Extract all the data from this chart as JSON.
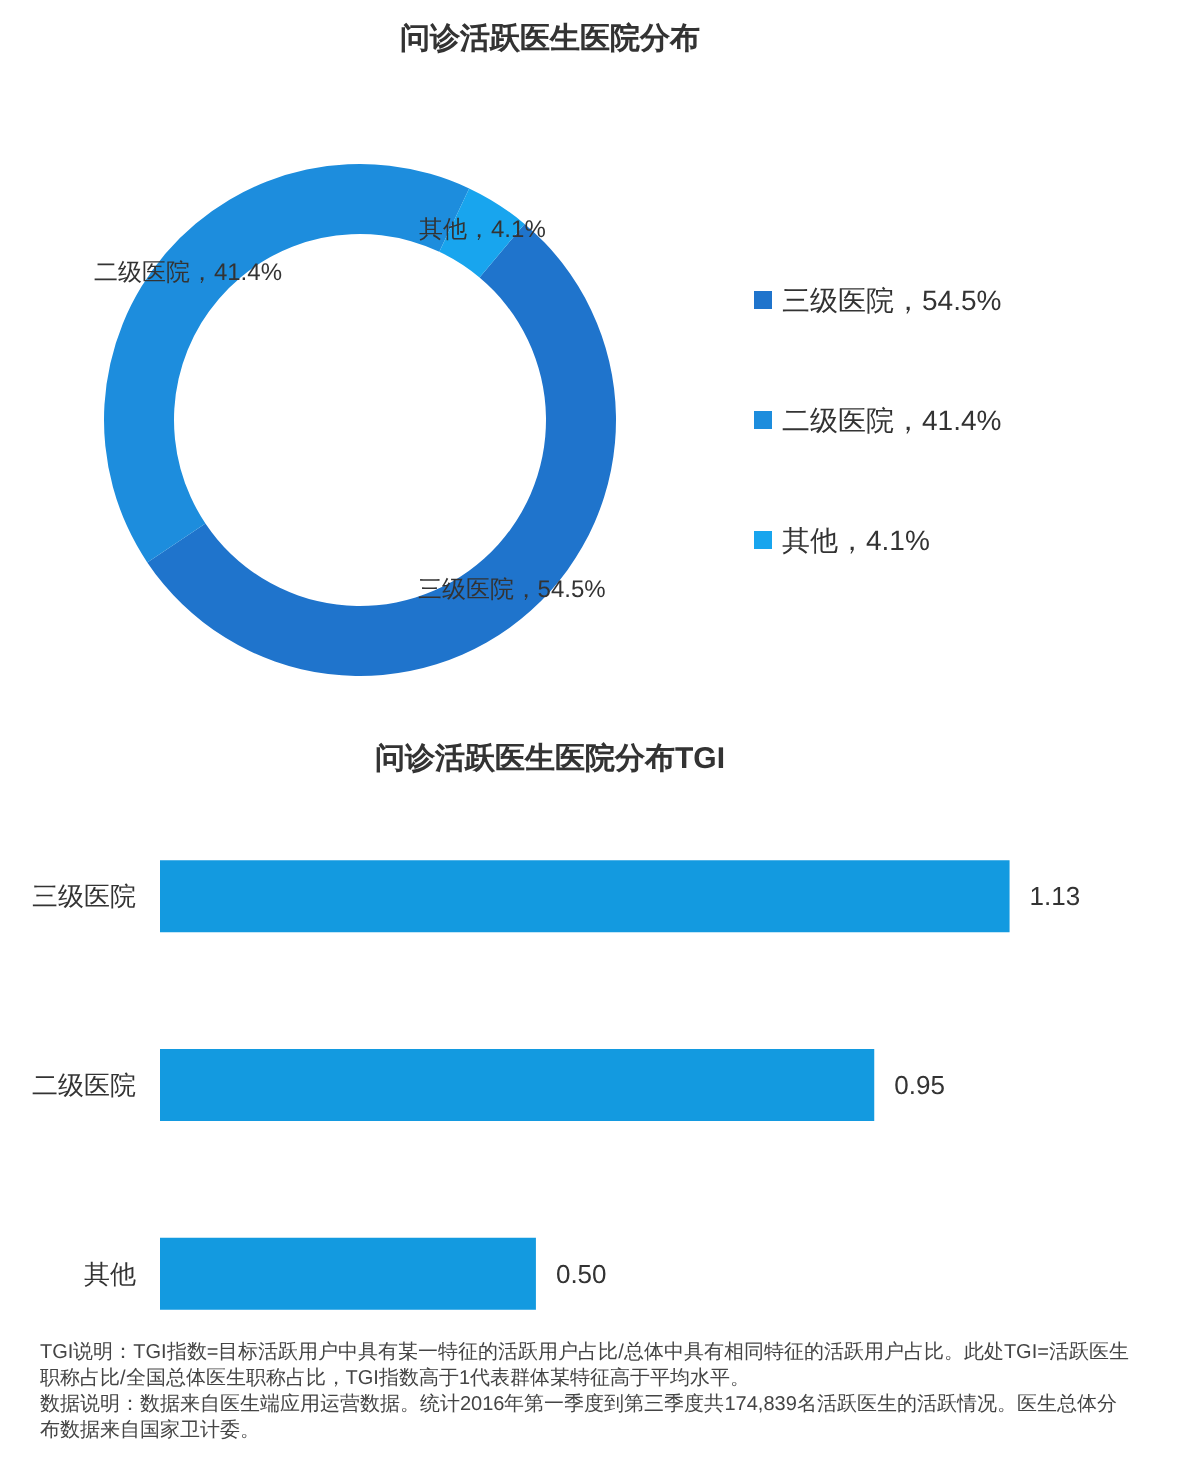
{
  "chart_data": [
    {
      "type": "donut",
      "title": "问诊活跃医生医院分布",
      "categories": [
        "三级医院，54.5%",
        "二级医院，41.4%",
        "其他，4.1%"
      ],
      "values": [
        54.5,
        41.4,
        4.1
      ],
      "colors": [
        "#1f74cc",
        "#1d8ddd",
        "#18a5ee"
      ],
      "legend": "right"
    },
    {
      "type": "bar",
      "orientation": "horizontal",
      "title": "问诊活跃医生医院分布TGI",
      "categories": [
        "三级医院",
        "二级医院",
        "其他"
      ],
      "values": [
        1.13,
        0.95,
        0.5
      ],
      "color": "#139ae0",
      "value_labels": [
        "1.13",
        "0.95",
        "0.50"
      ],
      "tick_labels": "y",
      "annotations": [
        "TGI说明：TGI指数=目标活跃用户中具有某一特征的活跃用户占比/总体中具有相同特征的活跃用户占比。此处TGI=活跃医生职称占比/全国总体医生职称占比，TGI指数高于1代表群体某特征高于平均水平。",
        "数据说明：数据来自医生端应用运营数据。统计2016年第一季度到第三季度共174,839名活跃医生的活跃情况。医生总体分布数据来自国家卫计委。"
      ]
    }
  ]
}
